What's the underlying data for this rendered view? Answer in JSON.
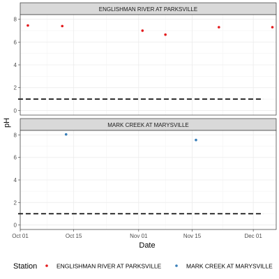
{
  "chart_data": {
    "type": "scatter",
    "xlabel": "Date",
    "ylabel": "pH",
    "x_range": [
      "2023-10-01",
      "2023-12-07"
    ],
    "x_ticks": [
      {
        "date": "2023-10-01",
        "label": "Oct 01"
      },
      {
        "date": "2023-10-15",
        "label": "Oct 15"
      },
      {
        "date": "2023-11-01",
        "label": "Nov 01"
      },
      {
        "date": "2023-11-15",
        "label": "Nov 15"
      },
      {
        "date": "2023-12-01",
        "label": "Dec 01"
      }
    ],
    "ylim": [
      -0.4,
      8.4
    ],
    "y_ticks": [
      0,
      2,
      4,
      6,
      8
    ],
    "grid": true,
    "legend": {
      "title": "Station",
      "position": "bottom",
      "entries": [
        {
          "label": "ENGLISHMAN RIVER AT PARKSVILLE",
          "color": "#e41a1c"
        },
        {
          "label": "MARK CREEK AT MARYSVILLE",
          "color": "#377eb8"
        }
      ]
    },
    "panels": [
      {
        "title": "ENGLISHMAN RIVER AT PARKSVILLE",
        "color": "#e41a1c",
        "points": [
          {
            "x": "2023-10-03",
            "y": 7.45
          },
          {
            "x": "2023-10-12",
            "y": 7.4
          },
          {
            "x": "2023-11-02",
            "y": 7.0
          },
          {
            "x": "2023-11-08",
            "y": 6.65
          },
          {
            "x": "2023-11-22",
            "y": 7.3
          },
          {
            "x": "2023-12-06",
            "y": 7.3
          }
        ],
        "reference_line": 1
      },
      {
        "title": "MARK CREEK AT MARYSVILLE",
        "color": "#377eb8",
        "points": [
          {
            "x": "2023-10-13",
            "y": 8.05
          },
          {
            "x": "2023-11-16",
            "y": 7.55
          }
        ],
        "reference_line": 1
      }
    ]
  }
}
